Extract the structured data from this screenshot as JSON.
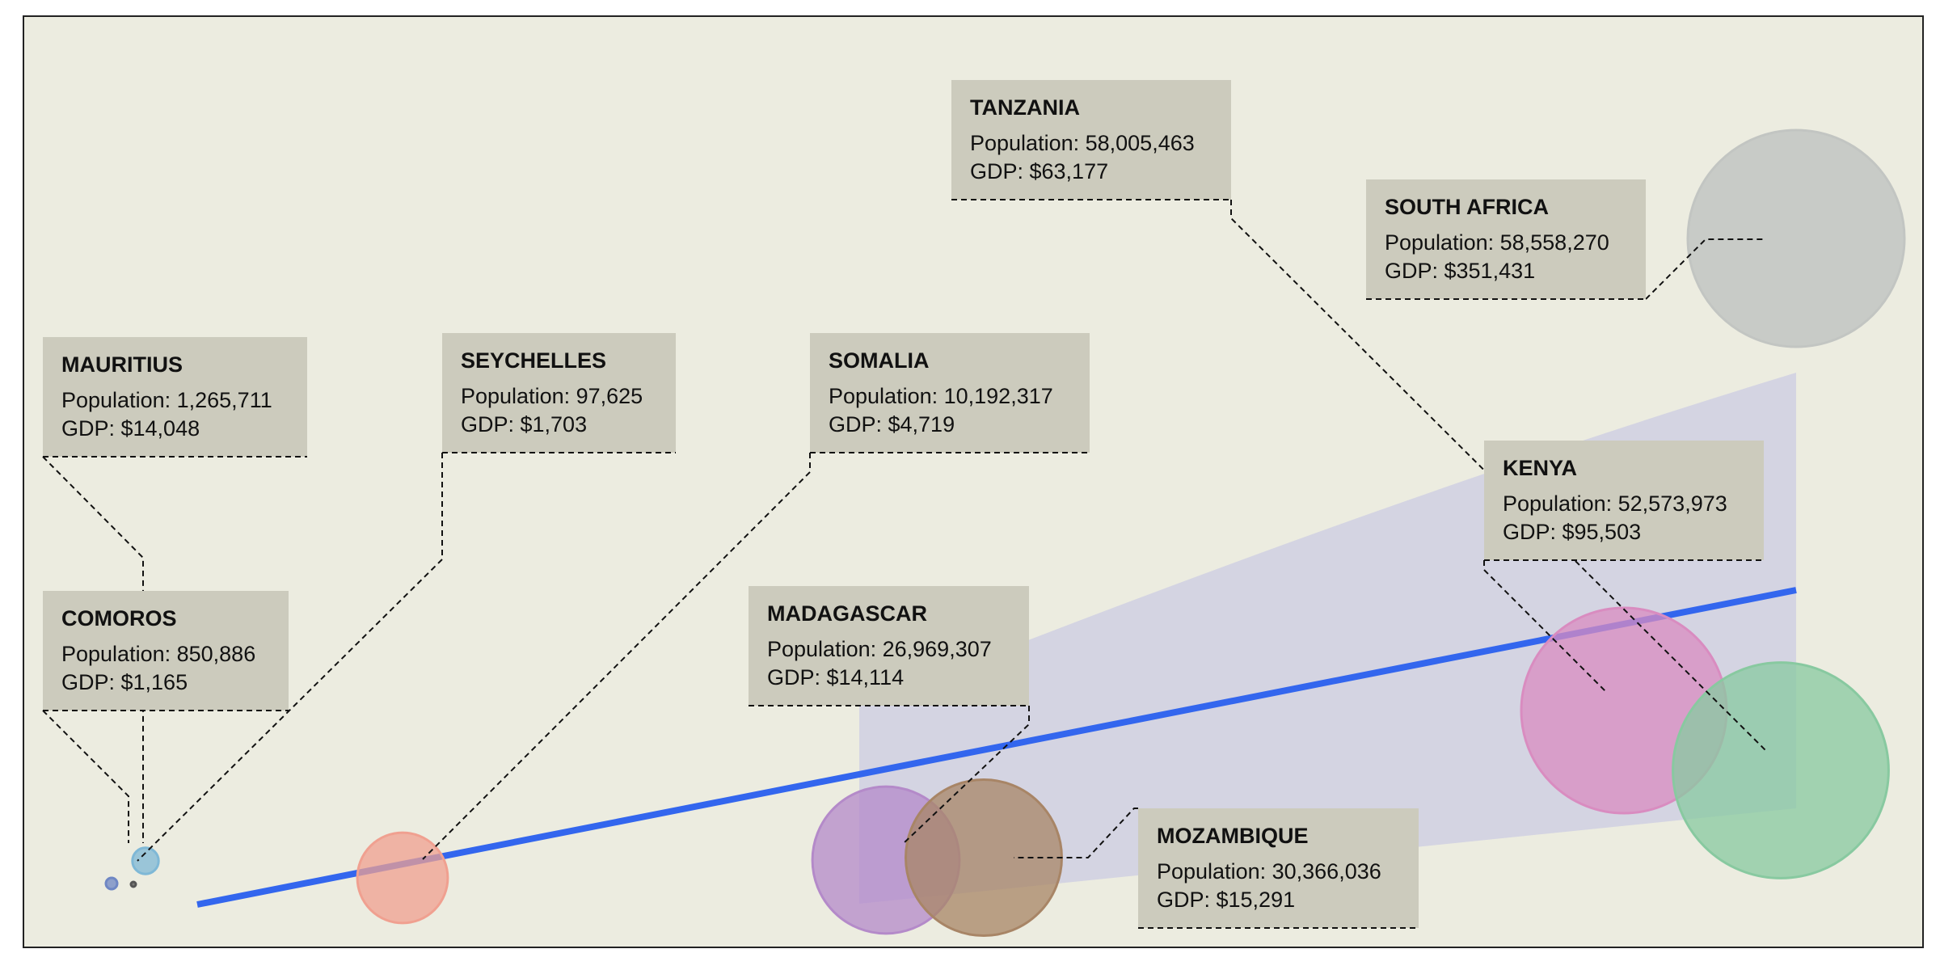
{
  "chart_data": {
    "type": "scatter",
    "title": "",
    "xlabel": "",
    "ylabel": "",
    "grid": false,
    "background": "#ecece0",
    "label_box_color": "#cccbbd",
    "trend_color": "#3366ee",
    "band_color": "#d4d4e2",
    "points": [
      {
        "name": "MAURITIUS",
        "population": "1,265,711",
        "gdp": "$14,048",
        "pop_value": 1265711,
        "gdp_value": 14048,
        "color": "#6f87c4"
      },
      {
        "name": "SEYCHELLES",
        "population": "97,625",
        "gdp": "$1,703",
        "pop_value": 97625,
        "gdp_value": 1703,
        "color": "#555555"
      },
      {
        "name": "COMOROS",
        "population": "850,886",
        "gdp": "$1,165",
        "pop_value": 850886,
        "gdp_value": 1165,
        "color": "#7fb8d6"
      },
      {
        "name": "SOMALIA",
        "population": "10,192,317",
        "gdp": "$4,719",
        "pop_value": 10192317,
        "gdp_value": 4719,
        "color": "#f0a090"
      },
      {
        "name": "MADAGASCAR",
        "population": "26,969,307",
        "gdp": "$14,114",
        "pop_value": 26969307,
        "gdp_value": 14114,
        "color": "#b48ac9"
      },
      {
        "name": "MOZAMBIQUE",
        "population": "30,366,036",
        "gdp": "$15,291",
        "pop_value": 30366036,
        "gdp_value": 15291,
        "color": "#a88566"
      },
      {
        "name": "KENYA",
        "population": "52,573,973",
        "gdp": "$95,503",
        "pop_value": 52573973,
        "gdp_value": 95503,
        "color": "#d98cc0"
      },
      {
        "name": "TANZANIA",
        "population": "58,005,463",
        "gdp": "$63,177",
        "pop_value": 58005463,
        "gdp_value": 63177,
        "color": "#88c9a0"
      },
      {
        "name": "SOUTH AFRICA",
        "population": "58,558,270",
        "gdp": "$351,431",
        "pop_value": 58558270,
        "gdp_value": 351431,
        "color": "#c2c5c2"
      }
    ],
    "label_prefix_population": "Population: ",
    "label_prefix_gdp": "GDP: "
  }
}
